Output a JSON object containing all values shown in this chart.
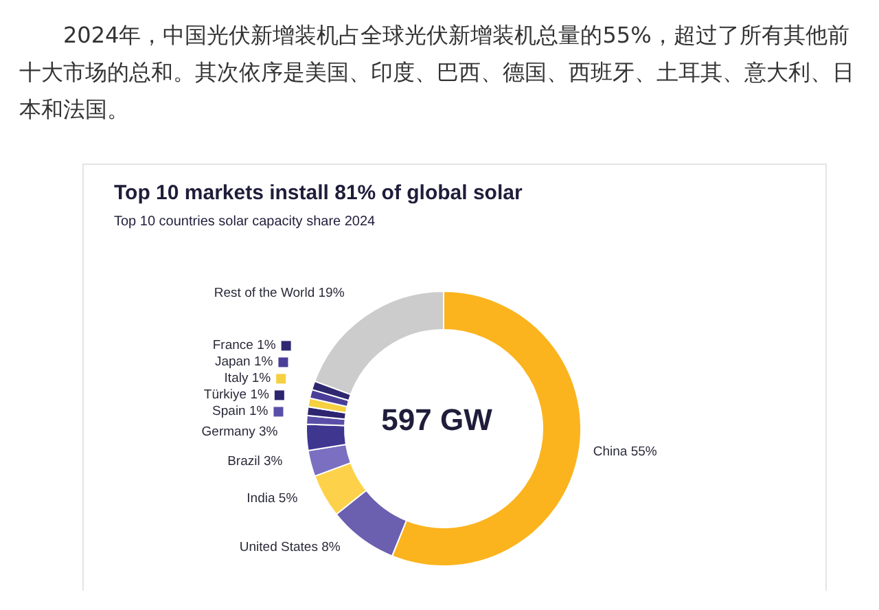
{
  "chart_data": {
    "type": "donut",
    "title": "Top 10 markets install 81% of global solar",
    "subtitle": "Top 10 countries solar capacity share 2024",
    "categories": [
      "China",
      "United States",
      "India",
      "Brazil",
      "Germany",
      "Spain",
      "Türkiye",
      "Italy",
      "Japan",
      "France",
      "Rest of the World"
    ],
    "values": [
      55,
      8,
      5,
      3,
      3,
      1,
      1,
      1,
      1,
      1,
      19
    ],
    "value_labels": [
      "55%",
      "8%",
      "5%",
      "3%",
      "3%",
      "1%",
      "1%",
      "1%",
      "1%",
      "1%",
      "19%"
    ],
    "colors": [
      "#fbb41e",
      "#6b5fb0",
      "#fdd24a",
      "#7a6fc0",
      "#3f3690",
      "#5a4fa8",
      "#2d2570",
      "#f5d040",
      "#4a3f98",
      "#2e2870",
      "#cccccc"
    ],
    "legend": "left",
    "annotations": [
      "2024年，中国光伏新增装机占全球光伏新增装机总量的55%，超过了所有其他前十大市场的总和。其次依序是美国、印度、巴西、德国、西班牙、土耳其、意大利、日本和法国。",
      "597 GW"
    ]
  }
}
